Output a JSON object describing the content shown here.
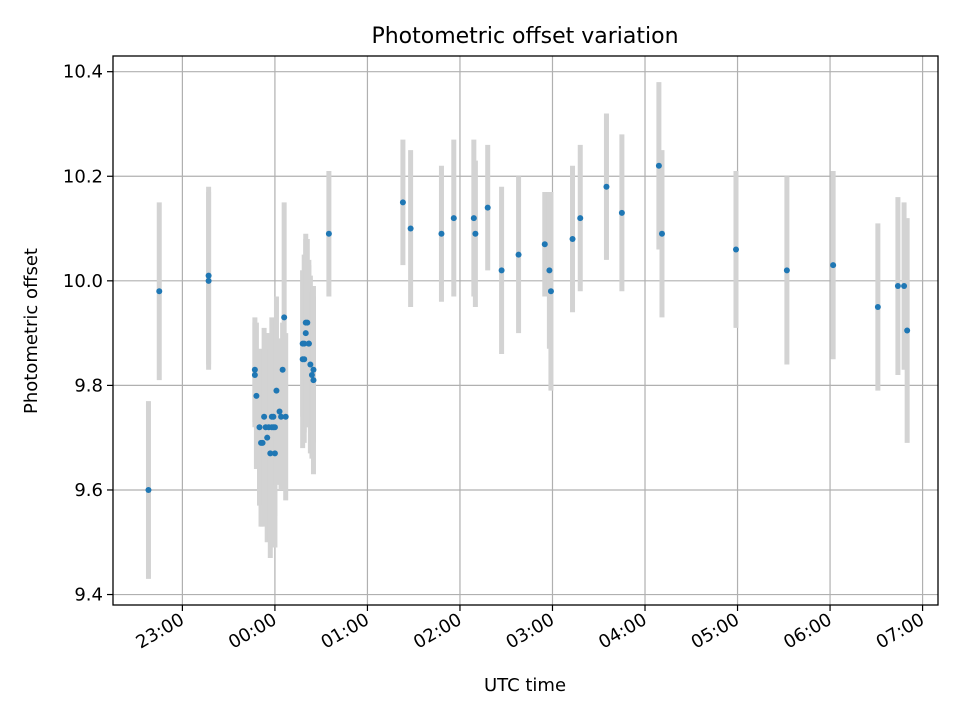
{
  "chart_data": {
    "type": "scatter",
    "title": "Photometric offset variation",
    "xlabel": "UTC time",
    "ylabel": "Photometric offset",
    "x_tick_labels": [
      "23:00",
      "00:00",
      "01:00",
      "02:00",
      "03:00",
      "04:00",
      "05:00",
      "06:00",
      "07:00"
    ],
    "y_tick_labels": [
      "9.4",
      "9.6",
      "9.8",
      "10.0",
      "10.2",
      "10.4"
    ],
    "y_ticks": [
      9.4,
      9.6,
      9.8,
      10.0,
      10.2,
      10.4
    ],
    "xlim": [
      "22:15",
      "07:10"
    ],
    "ylim": [
      9.38,
      10.43
    ],
    "grid": true,
    "colors": {
      "points": "#1f77b4",
      "errorbars": "#d3d3d3",
      "grid": "#b0b0b0"
    },
    "series": [
      {
        "x": [
          "22:38",
          "22:45",
          "23:17",
          "23:17",
          "23:47",
          "23:47",
          "23:48",
          "23:50",
          "23:51",
          "23:52",
          "23:53",
          "23:54",
          "23:55",
          "23:56",
          "23:57",
          "23:58",
          "23:58",
          "23:59",
          "23:59",
          "00:00",
          "00:00",
          "00:01",
          "00:03",
          "00:04",
          "00:05",
          "00:06",
          "00:07",
          "00:18",
          "00:18",
          "00:19",
          "00:19",
          "00:20",
          "00:20",
          "00:21",
          "00:22",
          "00:22",
          "00:23",
          "00:24",
          "00:25",
          "00:25",
          "00:35",
          "01:23",
          "01:28",
          "01:48",
          "01:56",
          "02:09",
          "02:10",
          "02:18",
          "02:27",
          "02:38",
          "02:55",
          "02:58",
          "02:59",
          "03:13",
          "03:18",
          "03:35",
          "03:45",
          "04:09",
          "04:11",
          "04:59",
          "05:32",
          "06:02",
          "06:31",
          "06:44",
          "06:48"
        ],
        "y": [
          9.6,
          9.98,
          10.01,
          10.0,
          9.82,
          9.83,
          9.78,
          9.72,
          9.69,
          9.69,
          9.74,
          9.72,
          9.7,
          9.72,
          9.67,
          9.74,
          9.72,
          9.72,
          9.74,
          9.67,
          9.72,
          9.79,
          9.75,
          9.74,
          9.83,
          9.93,
          9.74,
          9.85,
          9.88,
          9.85,
          9.88,
          9.9,
          9.92,
          9.92,
          9.88,
          9.88,
          9.84,
          9.82,
          9.81,
          9.83,
          10.09,
          10.15,
          10.1,
          10.09,
          10.12,
          10.12,
          10.09,
          10.14,
          10.02,
          10.05,
          10.07,
          10.02,
          9.98,
          10.08,
          10.12,
          10.18,
          10.13,
          10.22,
          10.09,
          10.06,
          10.02,
          10.03,
          9.95,
          9.99,
          9.99
        ],
        "err": [
          0.17,
          0.17,
          0.17,
          0.17,
          0.1,
          0.1,
          0.14,
          0.15,
          0.16,
          0.16,
          0.17,
          0.18,
          0.2,
          0.18,
          0.2,
          0.19,
          0.16,
          0.17,
          0.15,
          0.18,
          0.17,
          0.18,
          0.14,
          0.14,
          0.09,
          0.22,
          0.16,
          0.17,
          0.14,
          0.16,
          0.17,
          0.18,
          0.17,
          0.16,
          0.16,
          0.15,
          0.17,
          0.16,
          0.18,
          0.14,
          0.12,
          0.12,
          0.15,
          0.13,
          0.15,
          0.15,
          0.14,
          0.12,
          0.16,
          0.15,
          0.1,
          0.15,
          0.19,
          0.14,
          0.14,
          0.14,
          0.15,
          0.16,
          0.16,
          0.15,
          0.18,
          0.18,
          0.16,
          0.17,
          0.16
        ]
      },
      {
        "x": [
          "06:50"
        ],
        "y": [
          9.905
        ],
        "err": [
          0.215
        ]
      }
    ]
  }
}
